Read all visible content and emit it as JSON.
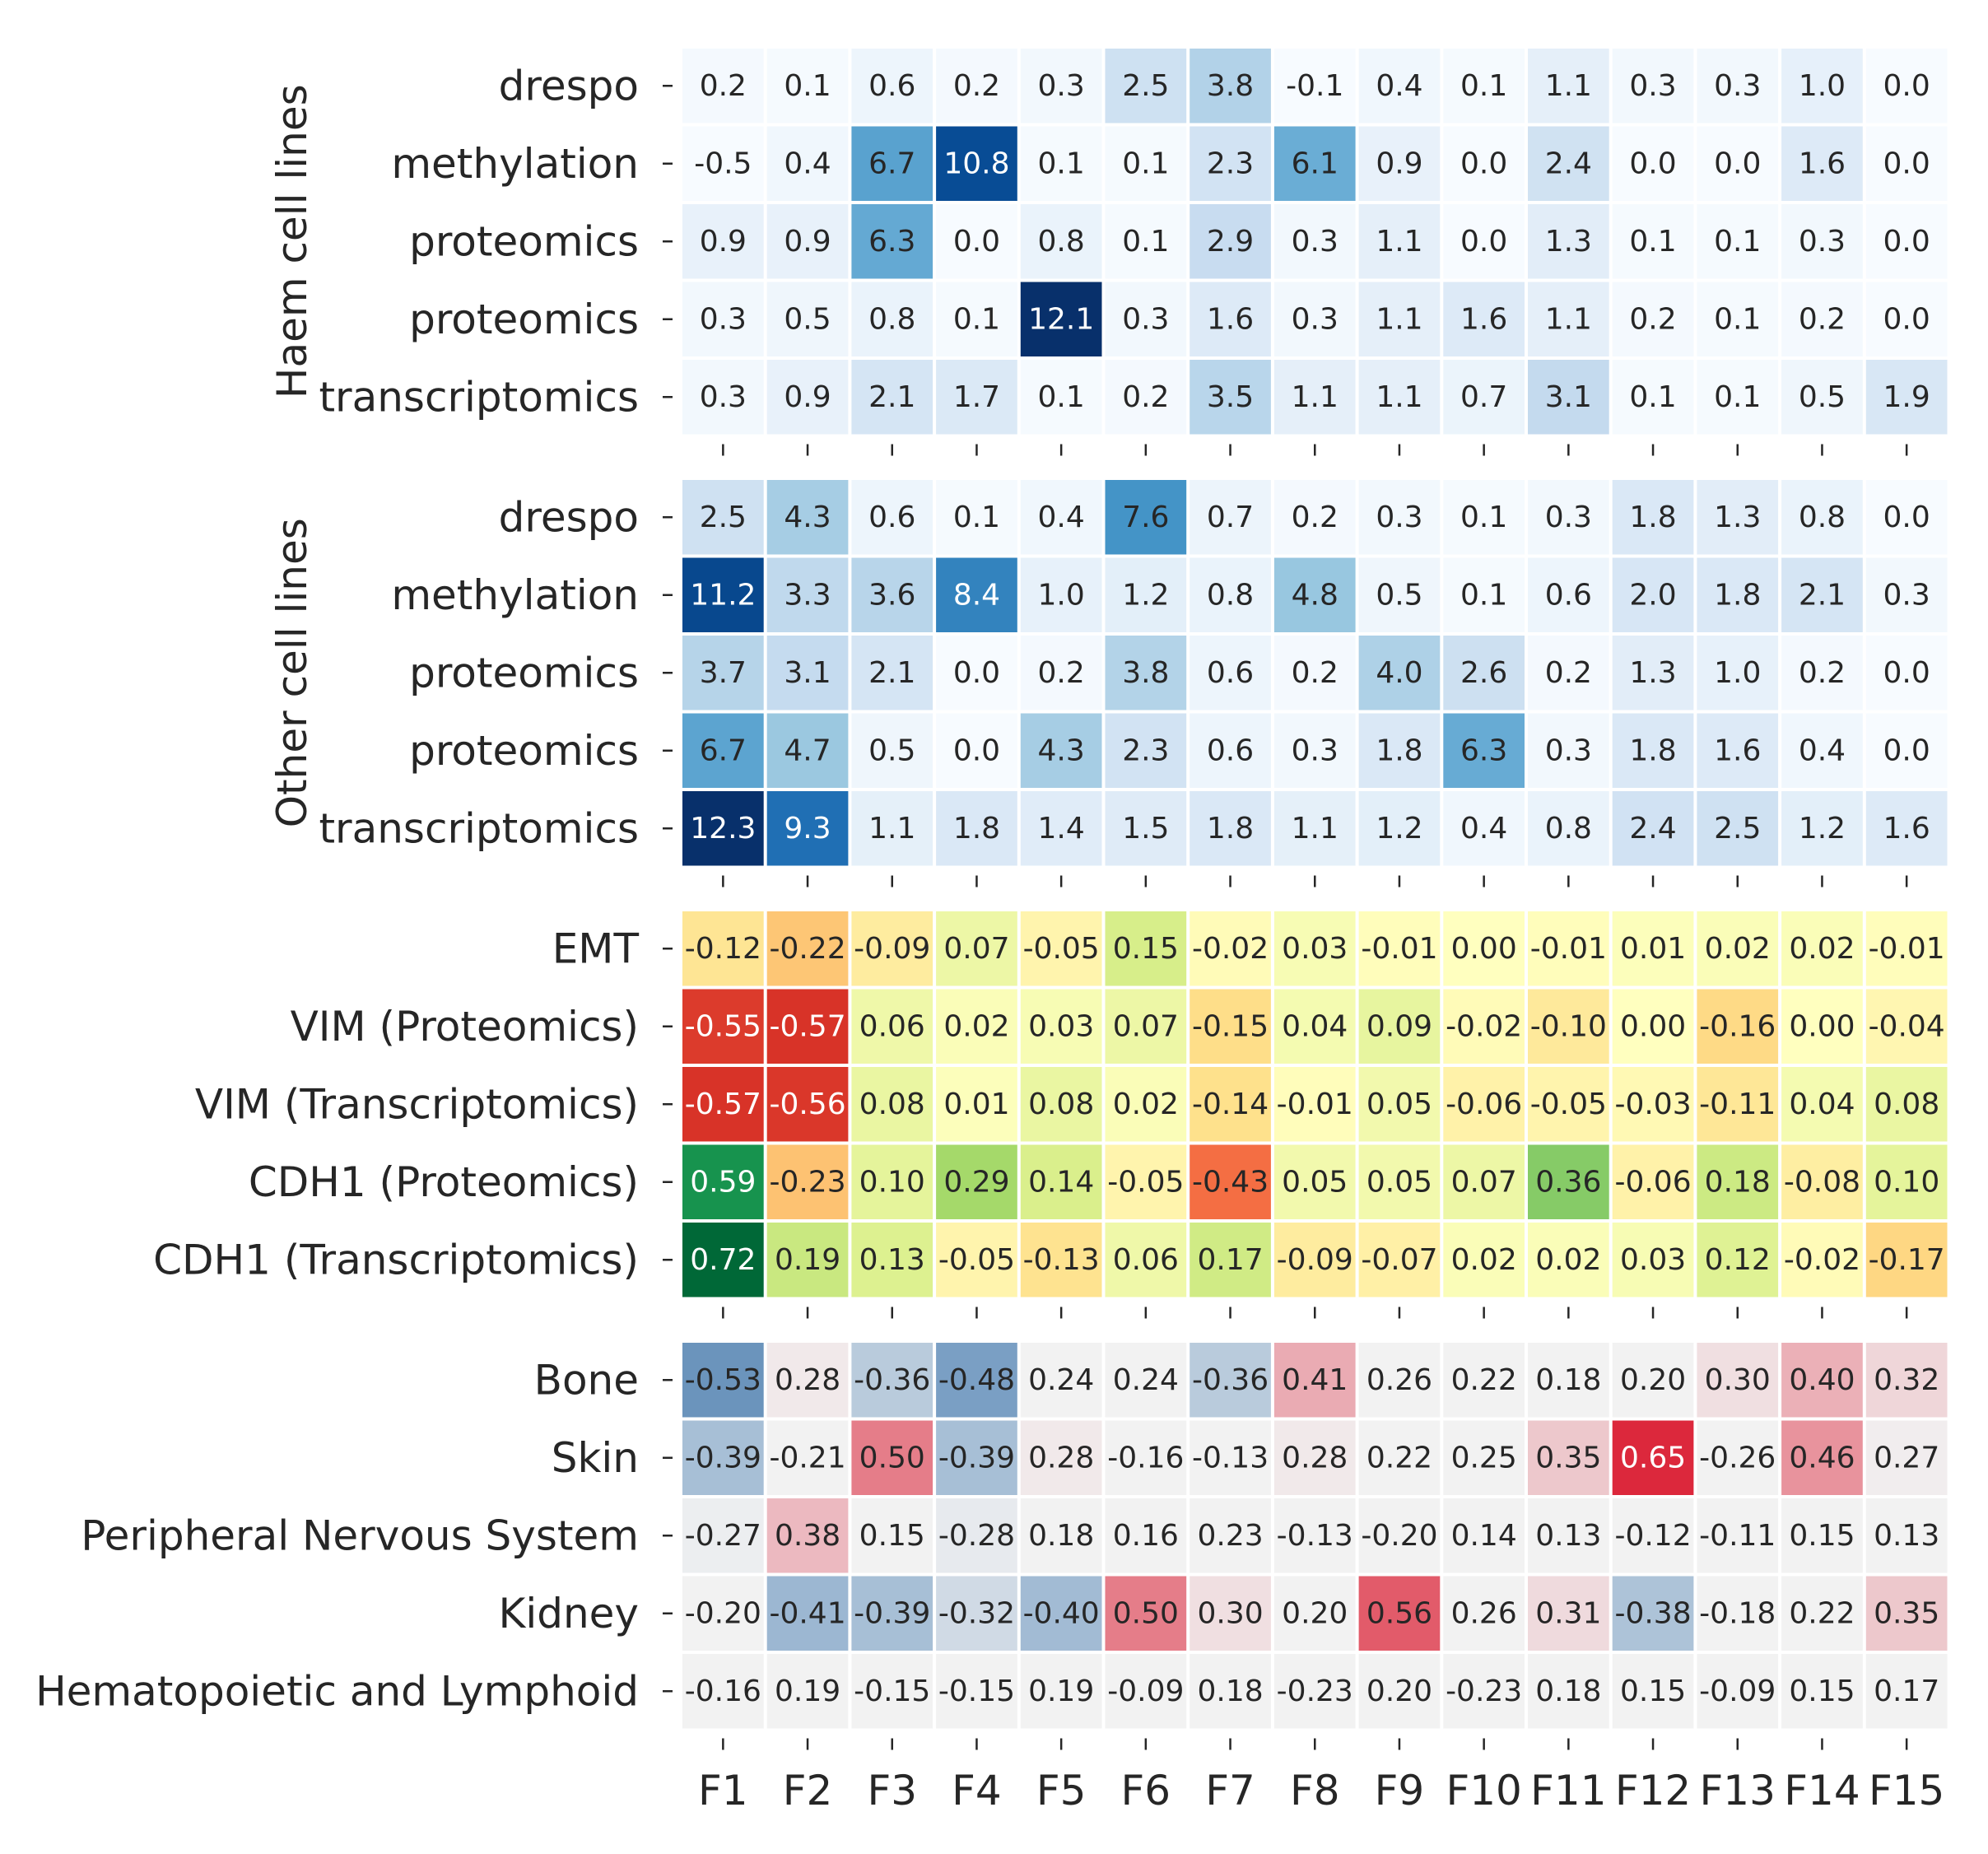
{
  "chart_data": {
    "type": "heatmap",
    "columns": [
      "F1",
      "F2",
      "F3",
      "F4",
      "F5",
      "F6",
      "F7",
      "F8",
      "F9",
      "F10",
      "F11",
      "F12",
      "F13",
      "F14",
      "F15"
    ],
    "panels": [
      {
        "group_label": "Haem cell lines",
        "colormap": "Blues",
        "vmin": 0,
        "vmax": 12.1,
        "decimals": 1,
        "rows": [
          "drespo",
          "methylation",
          "proteomics",
          "proteomics",
          "transcriptomics"
        ],
        "values": [
          [
            0.2,
            0.1,
            0.6,
            0.2,
            0.3,
            2.5,
            3.8,
            -0.1,
            0.4,
            0.1,
            1.1,
            0.3,
            0.3,
            1.0,
            0.0
          ],
          [
            -0.5,
            0.4,
            6.7,
            10.8,
            0.1,
            0.1,
            2.3,
            6.1,
            0.9,
            0.0,
            2.4,
            -0.0,
            0.0,
            1.6,
            -0.0
          ],
          [
            0.9,
            0.9,
            6.3,
            0.0,
            0.8,
            0.1,
            2.9,
            0.3,
            1.1,
            0.0,
            1.3,
            0.1,
            0.1,
            0.3,
            0.0
          ],
          [
            0.3,
            0.5,
            0.8,
            0.1,
            12.1,
            0.3,
            1.6,
            0.3,
            1.1,
            1.6,
            1.1,
            0.2,
            0.1,
            0.2,
            0.0
          ],
          [
            0.3,
            0.9,
            2.1,
            1.7,
            0.1,
            0.2,
            3.5,
            1.1,
            1.1,
            0.7,
            3.1,
            0.1,
            0.1,
            0.5,
            1.9
          ]
        ]
      },
      {
        "group_label": "Other cell lines",
        "colormap": "Blues",
        "vmin": 0,
        "vmax": 12.3,
        "decimals": 1,
        "rows": [
          "drespo",
          "methylation",
          "proteomics",
          "proteomics",
          "transcriptomics"
        ],
        "values": [
          [
            2.5,
            4.3,
            0.6,
            0.1,
            0.4,
            7.6,
            0.7,
            0.2,
            0.3,
            0.1,
            0.3,
            1.8,
            1.3,
            0.8,
            0.0
          ],
          [
            11.2,
            3.3,
            3.6,
            8.4,
            1.0,
            1.2,
            0.8,
            4.8,
            0.5,
            0.1,
            0.6,
            2.0,
            1.8,
            2.1,
            0.3
          ],
          [
            3.7,
            3.1,
            2.1,
            0.0,
            0.2,
            3.8,
            0.6,
            0.2,
            4.0,
            2.6,
            0.2,
            1.3,
            1.0,
            0.2,
            0.0
          ],
          [
            6.7,
            4.7,
            0.5,
            0.0,
            4.3,
            2.3,
            0.6,
            0.3,
            1.8,
            6.3,
            0.3,
            1.8,
            1.6,
            0.4,
            0.0
          ],
          [
            12.3,
            9.3,
            1.1,
            1.8,
            1.4,
            1.5,
            1.8,
            1.1,
            1.2,
            0.4,
            0.8,
            2.4,
            2.5,
            1.2,
            1.6
          ]
        ]
      },
      {
        "group_label": "",
        "colormap": "RdYlGn",
        "vmin": -0.72,
        "vmax": 0.72,
        "decimals": 2,
        "rows": [
          "EMT",
          "VIM (Proteomics)",
          "VIM (Transcriptomics)",
          "CDH1 (Proteomics)",
          "CDH1 (Transcriptomics)"
        ],
        "values": [
          [
            -0.12,
            -0.22,
            -0.09,
            0.07,
            -0.05,
            0.15,
            -0.02,
            0.03,
            -0.01,
            0.0,
            -0.01,
            0.01,
            0.02,
            0.02,
            -0.01
          ],
          [
            -0.55,
            -0.57,
            0.06,
            0.02,
            0.03,
            0.07,
            -0.15,
            0.04,
            0.09,
            -0.02,
            -0.1,
            0.0,
            -0.16,
            -0.0,
            -0.04
          ],
          [
            -0.57,
            -0.56,
            0.08,
            0.01,
            0.08,
            0.02,
            -0.14,
            -0.01,
            0.05,
            -0.06,
            -0.05,
            -0.03,
            -0.11,
            0.04,
            0.08
          ],
          [
            0.59,
            -0.23,
            0.1,
            0.29,
            0.14,
            -0.05,
            -0.43,
            0.05,
            0.05,
            0.07,
            0.36,
            -0.06,
            0.18,
            -0.08,
            0.1
          ],
          [
            0.72,
            0.19,
            0.13,
            -0.05,
            -0.13,
            0.06,
            0.17,
            -0.09,
            -0.07,
            0.02,
            0.02,
            0.03,
            0.12,
            -0.02,
            -0.17
          ]
        ]
      },
      {
        "group_label": "",
        "colormap": "diverging-blue-red",
        "vmin": -0.65,
        "vmax": 0.65,
        "decimals": 2,
        "rows": [
          "Bone",
          "Skin",
          "Peripheral Nervous System",
          "Kidney",
          "Hematopoietic and Lymphoid"
        ],
        "values": [
          [
            -0.53,
            0.28,
            -0.36,
            -0.48,
            0.24,
            0.24,
            -0.36,
            0.41,
            0.26,
            0.22,
            0.18,
            0.2,
            0.3,
            0.4,
            0.32
          ],
          [
            -0.39,
            -0.21,
            0.5,
            -0.39,
            0.28,
            -0.16,
            -0.13,
            0.28,
            0.22,
            0.25,
            0.35,
            0.65,
            -0.26,
            0.46,
            0.27
          ],
          [
            -0.27,
            0.38,
            0.15,
            -0.28,
            0.18,
            0.16,
            0.23,
            -0.13,
            -0.2,
            0.14,
            0.13,
            -0.12,
            -0.11,
            0.15,
            0.13
          ],
          [
            -0.2,
            -0.41,
            -0.39,
            -0.32,
            -0.4,
            0.5,
            0.3,
            0.2,
            0.56,
            0.26,
            0.31,
            -0.38,
            -0.18,
            0.22,
            0.35
          ],
          [
            -0.16,
            0.19,
            -0.15,
            -0.15,
            0.19,
            -0.09,
            0.18,
            -0.23,
            0.2,
            -0.23,
            0.18,
            0.15,
            -0.09,
            0.15,
            0.17
          ]
        ]
      }
    ]
  }
}
